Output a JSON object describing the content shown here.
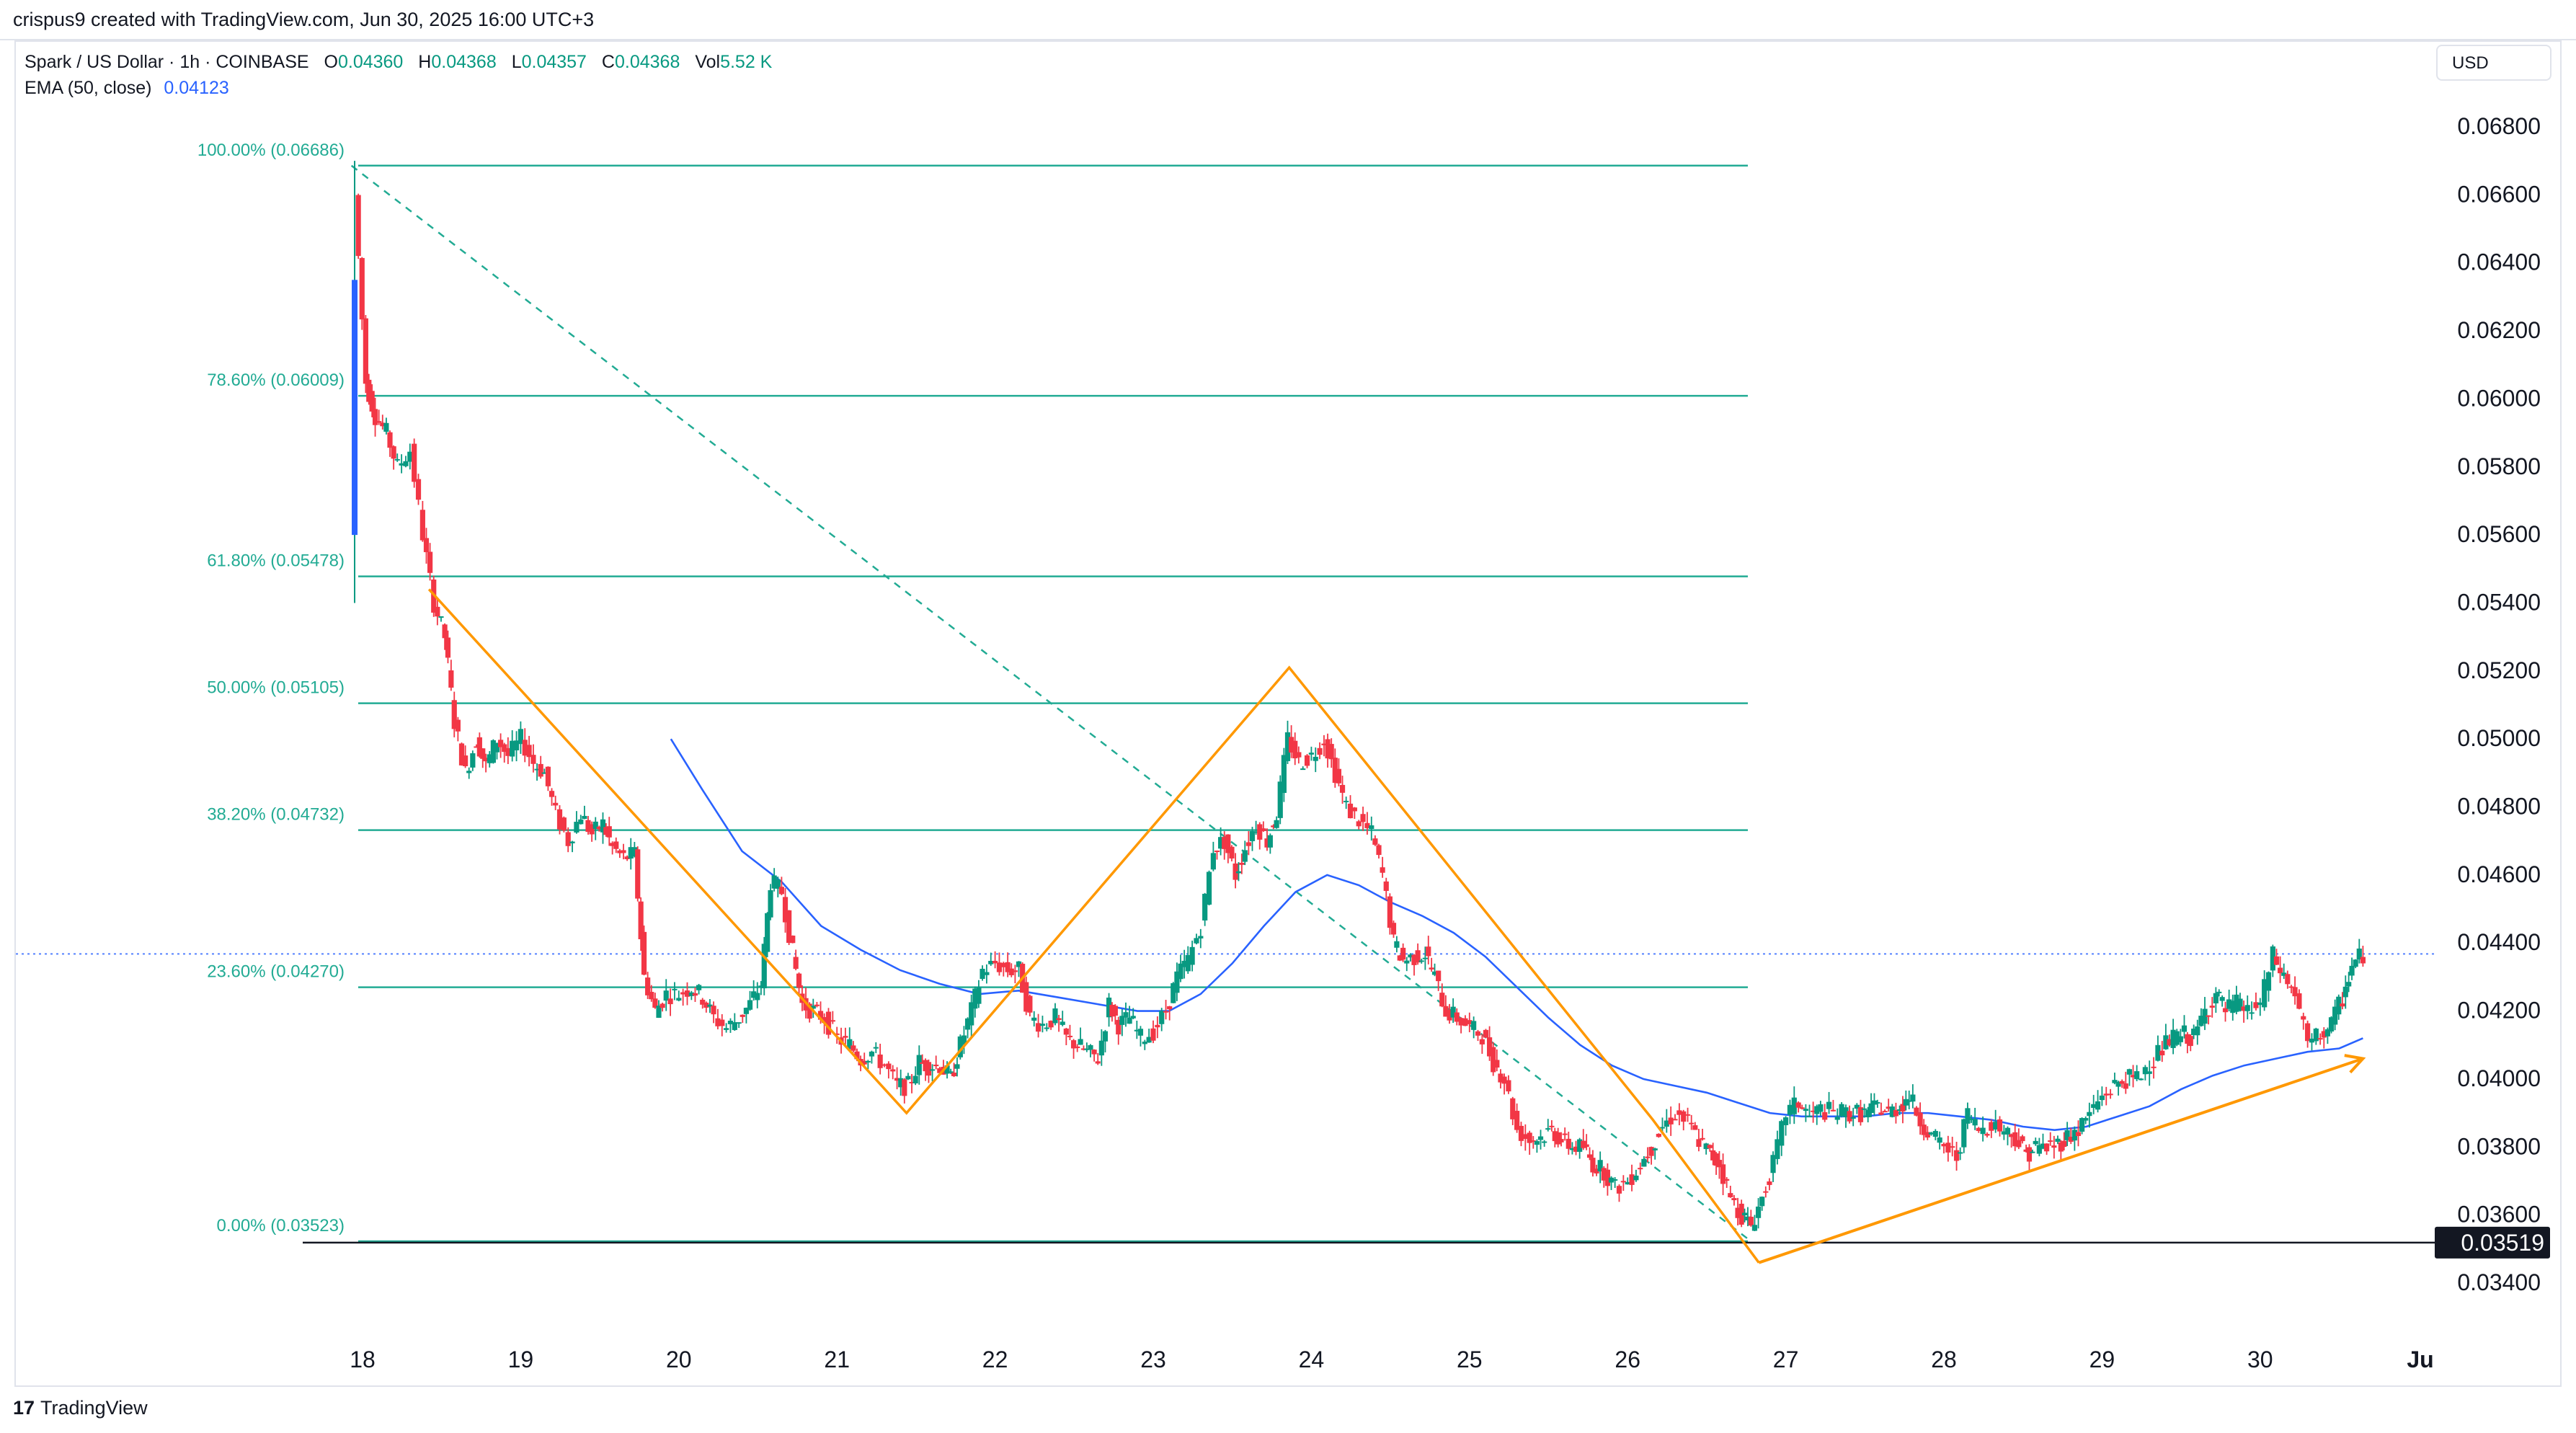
{
  "header": {
    "attribution": "crispus9 created with TradingView.com, Jun 30, 2025 16:00 UTC+3"
  },
  "legend": {
    "symbol": "Spark / US Dollar · 1h · COINBASE",
    "open_label": "O",
    "open_value": "0.04360",
    "high_label": "H",
    "high_value": "0.04368",
    "low_label": "L",
    "low_value": "0.04357",
    "close_label": "C",
    "close_value": "0.04368",
    "vol_label": "Vol",
    "vol_value": "5.52 K",
    "ema_label": "EMA (50, close)",
    "ema_value": "0.04123"
  },
  "currency": "USD",
  "footer": {
    "logo": "17",
    "brand": "TradingView"
  },
  "colors": {
    "up": "#089981",
    "down": "#f23645",
    "fib": "#22ab94",
    "ema": "#2962ff",
    "pattern": "#ff9800",
    "price_line": "#2962ff",
    "axis_text": "#131722",
    "marker_bg": "#131722"
  },
  "chart_data": {
    "type": "candlestick",
    "title": "Spark / US Dollar · 1h · COINBASE",
    "price_axis_ticks": [
      "0.06800",
      "0.06600",
      "0.06400",
      "0.06200",
      "0.06000",
      "0.05800",
      "0.05600",
      "0.05400",
      "0.05200",
      "0.05000",
      "0.04800",
      "0.04600",
      "0.04400",
      "0.04200",
      "0.04000",
      "0.03800",
      "0.03600",
      "0.03400"
    ],
    "time_axis_ticks": [
      "18",
      "19",
      "20",
      "21",
      "22",
      "23",
      "24",
      "25",
      "26",
      "27",
      "28",
      "29",
      "30",
      "Ju"
    ],
    "ylim": [
      0.0333,
      0.0697
    ],
    "current_price": 0.04368,
    "support_level": {
      "value": 0.03519,
      "label": "0.03519"
    },
    "fib_levels": [
      {
        "label": "100.00% (0.06686)",
        "value": 0.06686
      },
      {
        "label": "78.60% (0.06009)",
        "value": 0.06009
      },
      {
        "label": "61.80% (0.05478)",
        "value": 0.05478
      },
      {
        "label": "50.00% (0.05105)",
        "value": 0.05105
      },
      {
        "label": "38.20% (0.04732)",
        "value": 0.04732
      },
      {
        "label": "23.60% (0.04270)",
        "value": 0.0427
      },
      {
        "label": "0.00% (0.03523)",
        "value": 0.03523
      }
    ],
    "fib_trend": {
      "from": {
        "day": 17.93,
        "price": 0.06686
      },
      "to": {
        "day": 26.78,
        "price": 0.03523
      }
    },
    "pattern_path": [
      {
        "day": 18.42,
        "price": 0.0544
      },
      {
        "day": 21.44,
        "price": 0.039
      },
      {
        "day": 23.86,
        "price": 0.0521
      },
      {
        "day": 26.16,
        "price": 0.0388
      },
      {
        "day": 26.83,
        "price": 0.0346
      }
    ],
    "trend_arrow": {
      "from": {
        "day": 26.83,
        "price": 0.0346
      },
      "to": {
        "day": 30.65,
        "price": 0.0406
      }
    },
    "price_path": [
      [
        17.95,
        0.066
      ],
      [
        18.02,
        0.0605
      ],
      [
        18.08,
        0.0595
      ],
      [
        18.15,
        0.059
      ],
      [
        18.22,
        0.058
      ],
      [
        18.3,
        0.0585
      ],
      [
        18.38,
        0.056
      ],
      [
        18.45,
        0.054
      ],
      [
        18.52,
        0.053
      ],
      [
        18.58,
        0.0505
      ],
      [
        18.65,
        0.049
      ],
      [
        18.72,
        0.05
      ],
      [
        18.78,
        0.0492
      ],
      [
        18.85,
        0.05
      ],
      [
        18.92,
        0.0495
      ],
      [
        19.0,
        0.05
      ],
      [
        19.08,
        0.0493
      ],
      [
        19.15,
        0.049
      ],
      [
        19.22,
        0.0478
      ],
      [
        19.3,
        0.047
      ],
      [
        19.38,
        0.0478
      ],
      [
        19.45,
        0.0472
      ],
      [
        19.52,
        0.0475
      ],
      [
        19.58,
        0.0468
      ],
      [
        19.65,
        0.0465
      ],
      [
        19.72,
        0.0466
      ],
      [
        19.78,
        0.043
      ],
      [
        19.85,
        0.042
      ],
      [
        19.92,
        0.0425
      ],
      [
        20.0,
        0.0425
      ],
      [
        20.08,
        0.0427
      ],
      [
        20.15,
        0.0424
      ],
      [
        20.22,
        0.0418
      ],
      [
        20.3,
        0.0415
      ],
      [
        20.38,
        0.0418
      ],
      [
        20.45,
        0.0422
      ],
      [
        20.52,
        0.0428
      ],
      [
        20.58,
        0.0458
      ],
      [
        20.65,
        0.0455
      ],
      [
        20.72,
        0.0437
      ],
      [
        20.78,
        0.0422
      ],
      [
        20.85,
        0.042
      ],
      [
        20.92,
        0.0418
      ],
      [
        21.0,
        0.0412
      ],
      [
        21.08,
        0.041
      ],
      [
        21.15,
        0.0406
      ],
      [
        21.22,
        0.0408
      ],
      [
        21.3,
        0.0404
      ],
      [
        21.38,
        0.0398
      ],
      [
        21.45,
        0.0398
      ],
      [
        21.52,
        0.0405
      ],
      [
        21.58,
        0.0404
      ],
      [
        21.65,
        0.0404
      ],
      [
        21.72,
        0.04
      ],
      [
        21.78,
        0.041
      ],
      [
        21.85,
        0.042
      ],
      [
        21.92,
        0.0432
      ],
      [
        22.0,
        0.0434
      ],
      [
        22.08,
        0.0432
      ],
      [
        22.15,
        0.0432
      ],
      [
        22.22,
        0.0418
      ],
      [
        22.3,
        0.0416
      ],
      [
        22.38,
        0.0418
      ],
      [
        22.45,
        0.0412
      ],
      [
        22.52,
        0.041
      ],
      [
        22.58,
        0.0408
      ],
      [
        22.65,
        0.0406
      ],
      [
        22.72,
        0.0422
      ],
      [
        22.78,
        0.0416
      ],
      [
        22.85,
        0.0418
      ],
      [
        22.92,
        0.0412
      ],
      [
        23.0,
        0.0414
      ],
      [
        23.08,
        0.042
      ],
      [
        23.15,
        0.043
      ],
      [
        23.22,
        0.0435
      ],
      [
        23.3,
        0.0445
      ],
      [
        23.38,
        0.0468
      ],
      [
        23.45,
        0.047
      ],
      [
        23.52,
        0.046
      ],
      [
        23.58,
        0.0468
      ],
      [
        23.65,
        0.0475
      ],
      [
        23.72,
        0.047
      ],
      [
        23.78,
        0.0478
      ],
      [
        23.85,
        0.05
      ],
      [
        23.92,
        0.0493
      ],
      [
        24.0,
        0.0495
      ],
      [
        24.08,
        0.05
      ],
      [
        24.15,
        0.049
      ],
      [
        24.22,
        0.048
      ],
      [
        24.3,
        0.0476
      ],
      [
        24.38,
        0.0472
      ],
      [
        24.45,
        0.046
      ],
      [
        24.52,
        0.044
      ],
      [
        24.58,
        0.0435
      ],
      [
        24.65,
        0.0436
      ],
      [
        24.72,
        0.0437
      ],
      [
        24.78,
        0.043
      ],
      [
        24.85,
        0.042
      ],
      [
        24.92,
        0.0418
      ],
      [
        25.0,
        0.0415
      ],
      [
        25.08,
        0.0413
      ],
      [
        25.15,
        0.0405
      ],
      [
        25.22,
        0.04
      ],
      [
        25.3,
        0.0385
      ],
      [
        25.38,
        0.0382
      ],
      [
        25.45,
        0.0383
      ],
      [
        25.52,
        0.0385
      ],
      [
        25.58,
        0.0382
      ],
      [
        25.65,
        0.038
      ],
      [
        25.72,
        0.038
      ],
      [
        25.78,
        0.0375
      ],
      [
        25.85,
        0.0373
      ],
      [
        25.92,
        0.0368
      ],
      [
        26.0,
        0.037
      ],
      [
        26.08,
        0.0375
      ],
      [
        26.15,
        0.038
      ],
      [
        26.22,
        0.0386
      ],
      [
        26.3,
        0.039
      ],
      [
        26.38,
        0.0387
      ],
      [
        26.45,
        0.0382
      ],
      [
        26.52,
        0.0378
      ],
      [
        26.58,
        0.0375
      ],
      [
        26.65,
        0.0365
      ],
      [
        26.72,
        0.036
      ],
      [
        26.78,
        0.0357
      ],
      [
        26.85,
        0.0365
      ],
      [
        26.92,
        0.0375
      ],
      [
        27.0,
        0.039
      ],
      [
        27.08,
        0.0393
      ],
      [
        27.15,
        0.0389
      ],
      [
        27.22,
        0.0391
      ],
      [
        27.3,
        0.039
      ],
      [
        27.38,
        0.039
      ],
      [
        27.45,
        0.039
      ],
      [
        27.52,
        0.039
      ],
      [
        27.58,
        0.0392
      ],
      [
        27.65,
        0.039
      ],
      [
        27.72,
        0.0392
      ],
      [
        27.78,
        0.0395
      ],
      [
        27.85,
        0.0388
      ],
      [
        27.92,
        0.0383
      ],
      [
        28.0,
        0.038
      ],
      [
        28.08,
        0.0377
      ],
      [
        28.15,
        0.039
      ],
      [
        28.22,
        0.0385
      ],
      [
        28.3,
        0.0387
      ],
      [
        28.38,
        0.0385
      ],
      [
        28.45,
        0.0383
      ],
      [
        28.52,
        0.0378
      ],
      [
        28.58,
        0.038
      ],
      [
        28.65,
        0.038
      ],
      [
        28.72,
        0.0381
      ],
      [
        28.78,
        0.0383
      ],
      [
        28.85,
        0.0385
      ],
      [
        28.92,
        0.039
      ],
      [
        29.0,
        0.0395
      ],
      [
        29.08,
        0.0398
      ],
      [
        29.15,
        0.04
      ],
      [
        29.22,
        0.04
      ],
      [
        29.3,
        0.0405
      ],
      [
        29.38,
        0.0409
      ],
      [
        29.45,
        0.0412
      ],
      [
        29.52,
        0.0413
      ],
      [
        29.58,
        0.0412
      ],
      [
        29.65,
        0.042
      ],
      [
        29.72,
        0.0425
      ],
      [
        29.78,
        0.042
      ],
      [
        29.85,
        0.0422
      ],
      [
        29.92,
        0.042
      ],
      [
        30.0,
        0.0422
      ],
      [
        30.08,
        0.0436
      ],
      [
        30.15,
        0.043
      ],
      [
        30.22,
        0.0425
      ],
      [
        30.3,
        0.041
      ],
      [
        30.38,
        0.0413
      ],
      [
        30.45,
        0.0416
      ],
      [
        30.52,
        0.0424
      ],
      [
        30.58,
        0.0433
      ],
      [
        30.65,
        0.0437
      ]
    ],
    "ema_path": [
      [
        19.95,
        0.05
      ],
      [
        20.15,
        0.0485
      ],
      [
        20.4,
        0.0467
      ],
      [
        20.65,
        0.0458
      ],
      [
        20.9,
        0.0445
      ],
      [
        21.15,
        0.0438
      ],
      [
        21.4,
        0.0432
      ],
      [
        21.65,
        0.0428
      ],
      [
        21.9,
        0.0425
      ],
      [
        22.15,
        0.0426
      ],
      [
        22.4,
        0.0424
      ],
      [
        22.65,
        0.0422
      ],
      [
        22.9,
        0.042
      ],
      [
        23.1,
        0.042
      ],
      [
        23.3,
        0.0425
      ],
      [
        23.5,
        0.0434
      ],
      [
        23.7,
        0.0445
      ],
      [
        23.9,
        0.0455
      ],
      [
        24.1,
        0.046
      ],
      [
        24.3,
        0.0457
      ],
      [
        24.5,
        0.0452
      ],
      [
        24.7,
        0.0448
      ],
      [
        24.9,
        0.0443
      ],
      [
        25.1,
        0.0436
      ],
      [
        25.3,
        0.0427
      ],
      [
        25.5,
        0.0418
      ],
      [
        25.7,
        0.041
      ],
      [
        25.9,
        0.0404
      ],
      [
        26.1,
        0.04
      ],
      [
        26.3,
        0.0398
      ],
      [
        26.5,
        0.0396
      ],
      [
        26.7,
        0.0393
      ],
      [
        26.9,
        0.039
      ],
      [
        27.1,
        0.0389
      ],
      [
        27.3,
        0.0389
      ],
      [
        27.5,
        0.0389
      ],
      [
        27.7,
        0.039
      ],
      [
        27.9,
        0.039
      ],
      [
        28.1,
        0.0389
      ],
      [
        28.3,
        0.0388
      ],
      [
        28.5,
        0.0386
      ],
      [
        28.7,
        0.0385
      ],
      [
        28.9,
        0.0386
      ],
      [
        29.1,
        0.0389
      ],
      [
        29.3,
        0.0392
      ],
      [
        29.5,
        0.0397
      ],
      [
        29.7,
        0.0401
      ],
      [
        29.9,
        0.0404
      ],
      [
        30.1,
        0.0406
      ],
      [
        30.3,
        0.0408
      ],
      [
        30.5,
        0.0409
      ],
      [
        30.65,
        0.0412
      ]
    ]
  }
}
